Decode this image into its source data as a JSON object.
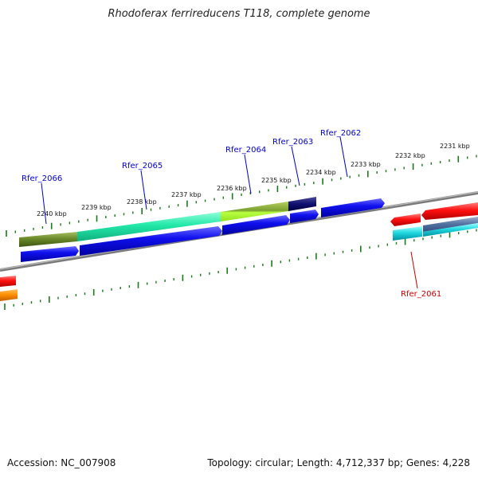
{
  "title": "Rhodoferax ferrireducens T118, complete genome",
  "footer": {
    "accession": "Accession: NC_007908",
    "summary": "Topology: circular; Length: 4,712,337 bp; Genes: 4,228"
  },
  "colors": {
    "forward_label": "#0000cc",
    "reverse_label": "#cc0000",
    "tick": "#1a7a1a",
    "backbone": "#888888"
  },
  "tick_labels": [
    "2240 kbp",
    "2239 kbp",
    "2238 kbp",
    "2237 kbp",
    "2236 kbp",
    "2235 kbp",
    "2234 kbp",
    "2233 kbp",
    "2232 kbp",
    "2231 kbp"
  ],
  "gene_labels": [
    {
      "name": "Rfer_2066",
      "strand": "forward"
    },
    {
      "name": "Rfer_2065",
      "strand": "forward"
    },
    {
      "name": "Rfer_2064",
      "strand": "forward"
    },
    {
      "name": "Rfer_2063",
      "strand": "forward"
    },
    {
      "name": "Rfer_2062",
      "strand": "forward"
    },
    {
      "name": "Rfer_2061",
      "strand": "reverse"
    }
  ]
}
